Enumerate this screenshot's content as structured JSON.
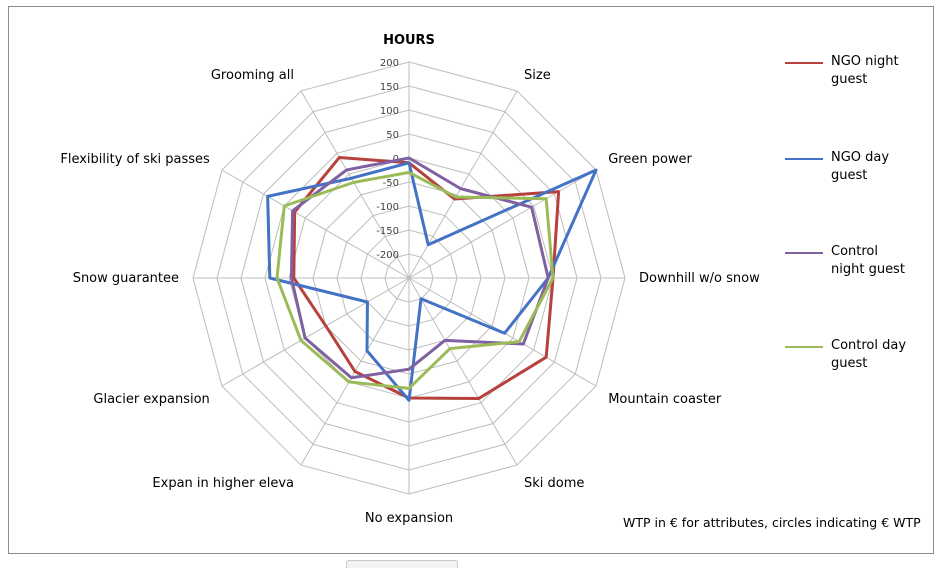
{
  "chart_data": {
    "type": "radar",
    "title": "HOURS",
    "axes": [
      "HOURS",
      "Size",
      "Green power",
      "Downhill w/o snow",
      "Mountain coaster",
      "Ski dome",
      "No expansion",
      "Expan in higher eleva",
      "Glacier expansion",
      "Snow guarantee",
      "Flexibility of ski passes",
      "Grooming all"
    ],
    "scale": {
      "min": -250,
      "max": 200,
      "step": 50
    },
    "tick_labels": [
      "-200",
      "-150",
      "-100",
      "-50",
      "0",
      "50",
      "100",
      "150",
      "200"
    ],
    "series": [
      {
        "name": "NGO night guest",
        "color": "#b6413d",
        "values": [
          -10,
          -60,
          110,
          50,
          80,
          40,
          0,
          -25,
          -50,
          -10,
          25,
          40
        ]
      },
      {
        "name": "NGO day guest",
        "color": "#4472c4",
        "values": [
          -10,
          -170,
          200,
          40,
          -20,
          -200,
          5,
          -75,
          -150,
          40,
          90,
          -10
        ]
      },
      {
        "name": "Control night guest",
        "color": "#7f60a0",
        "values": [
          0,
          -35,
          45,
          40,
          25,
          -100,
          -60,
          -10,
          0,
          -5,
          30,
          10
        ]
      },
      {
        "name": "Control day guest",
        "color": "#9bbb59",
        "values": [
          -30,
          -55,
          80,
          50,
          15,
          -80,
          -20,
          0,
          10,
          25,
          50,
          -20
        ]
      }
    ],
    "grid": true,
    "legend_position": "right"
  },
  "footnote": "WTP in € for attributes, circles indicating  € WTP"
}
